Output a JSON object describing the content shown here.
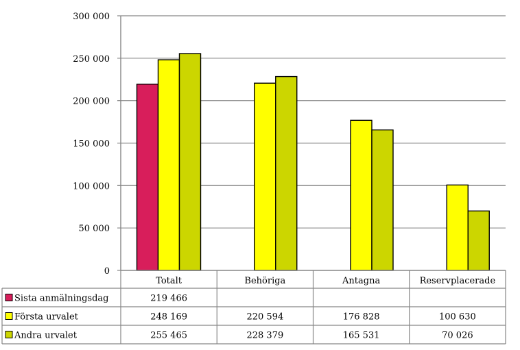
{
  "chart_data": {
    "type": "bar",
    "categories": [
      "Totalt",
      "Behöriga",
      "Antagna",
      "Reservplacerade"
    ],
    "series": [
      {
        "name": "Sista anmälningsdag",
        "color": "#d81e5b",
        "values": [
          219466,
          null,
          null,
          null
        ],
        "labels": [
          "219 466",
          "",
          "",
          ""
        ]
      },
      {
        "name": "Första urvalet",
        "color": "#ffff00",
        "values": [
          248169,
          220594,
          176828,
          100630
        ],
        "labels": [
          "248 169",
          "220 594",
          "176 828",
          "100 630"
        ]
      },
      {
        "name": "Andra urvalet",
        "color": "#ccd600",
        "values": [
          255465,
          228379,
          165531,
          70026
        ],
        "labels": [
          "255 465",
          "228 379",
          "165 531",
          "70 026"
        ]
      }
    ],
    "ylim": [
      0,
      300000
    ],
    "yticks": [
      0,
      50000,
      100000,
      150000,
      200000,
      250000,
      300000
    ],
    "ytick_labels": [
      "0",
      "50 000",
      "100 000",
      "150 000",
      "200 000",
      "250 000",
      "300 000"
    ],
    "grid": true,
    "legend": "data-table-left"
  }
}
